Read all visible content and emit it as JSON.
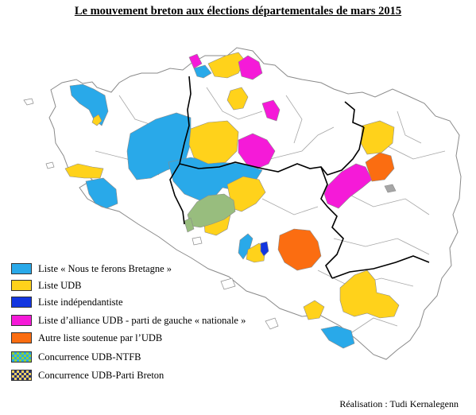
{
  "title": "Le mouvement breton aux élections départementales de mars 2015",
  "legend": [
    {
      "label": "Liste « Nous te ferons Bretagne »",
      "color": "#29a9e9",
      "pattern": "solid"
    },
    {
      "label": "Liste UDB",
      "color": "#ffd21b",
      "pattern": "solid"
    },
    {
      "label": "Liste indépendantiste",
      "color": "#1336e0",
      "pattern": "solid"
    },
    {
      "label": "Liste d’alliance UDB - parti de gauche « nationale »",
      "color": "#f51ad8",
      "pattern": "solid"
    },
    {
      "label": "Autre liste soutenue par l’UDB",
      "color": "#fb6d11",
      "pattern": "solid"
    },
    {
      "label": "Concurrence UDB-NTFB",
      "color": "#8fd13a",
      "color2": "#29a9e9",
      "pattern": "checker"
    },
    {
      "label": "Concurrence UDB-Parti Breton",
      "color": "#f0d060",
      "color2": "#2a3270",
      "pattern": "checker"
    }
  ],
  "credit": "Réalisation : Tudi Kernalegenn",
  "colors": {
    "land": "#ffffff",
    "canton_border": "#9a9a9a",
    "department_border": "#000000",
    "unlabeled_green": "#98bd7e",
    "unlabeled_grey": "#a6a6a6"
  }
}
